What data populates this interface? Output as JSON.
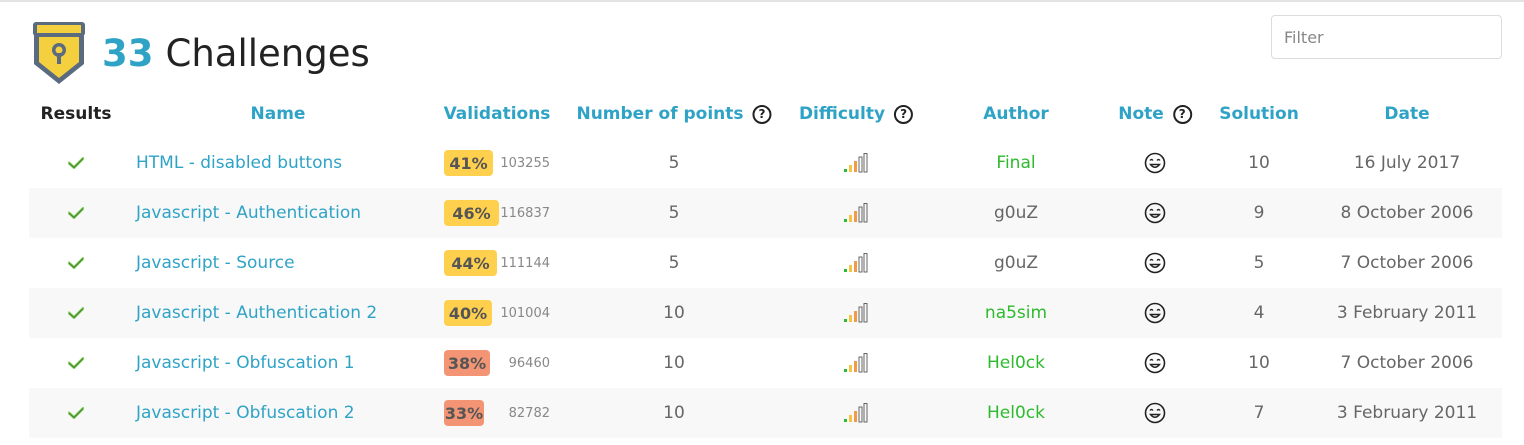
{
  "header": {
    "count": "33",
    "title": "Challenges"
  },
  "filter": {
    "placeholder": "Filter"
  },
  "columns": {
    "results": "Results",
    "name": "Name",
    "validations": "Validations",
    "points": "Number of points",
    "difficulty": "Difficulty",
    "author": "Author",
    "note": "Note",
    "solution": "Solution",
    "date": "Date",
    "help": "?"
  },
  "colors": {
    "accent": "#2fa3c6",
    "pct_yellow": "#ffd04d",
    "pct_orange": "#f39575",
    "author_green": "#2dbb2d",
    "check_green": "#8dd36a"
  },
  "rows": [
    {
      "result_icon": "check-icon",
      "name": "HTML - disabled buttons",
      "percent": "41%",
      "percent_fill": 0.41,
      "percent_color": "#ffd04d",
      "validations": "103255",
      "points": "5",
      "difficulty_icon": "difficulty-bars-icon",
      "author": "Final",
      "author_highlight": true,
      "note_icon": "smiley-face-icon",
      "solutions": "10",
      "date": "16 July 2017"
    },
    {
      "result_icon": "check-icon",
      "name": "Javascript - Authentication",
      "percent": "46%",
      "percent_fill": 0.46,
      "percent_color": "#ffd04d",
      "validations": "116837",
      "points": "5",
      "difficulty_icon": "difficulty-bars-icon",
      "author": "g0uZ",
      "author_highlight": false,
      "note_icon": "smiley-face-icon",
      "solutions": "9",
      "date": "8 October 2006"
    },
    {
      "result_icon": "check-icon",
      "name": "Javascript - Source",
      "percent": "44%",
      "percent_fill": 0.44,
      "percent_color": "#ffd04d",
      "validations": "111144",
      "points": "5",
      "difficulty_icon": "difficulty-bars-icon",
      "author": "g0uZ",
      "author_highlight": false,
      "note_icon": "smiley-face-icon",
      "solutions": "5",
      "date": "7 October 2006"
    },
    {
      "result_icon": "check-icon",
      "name": "Javascript - Authentication 2",
      "percent": "40%",
      "percent_fill": 0.4,
      "percent_color": "#ffd04d",
      "validations": "101004",
      "points": "10",
      "difficulty_icon": "difficulty-bars-icon",
      "author": "na5sim",
      "author_highlight": true,
      "note_icon": "smiley-face-icon",
      "solutions": "4",
      "date": "3 February 2011"
    },
    {
      "result_icon": "check-icon",
      "name": "Javascript - Obfuscation 1",
      "percent": "38%",
      "percent_fill": 0.38,
      "percent_color": "#f39575",
      "validations": "96460",
      "points": "10",
      "difficulty_icon": "difficulty-bars-icon",
      "author": "Hel0ck",
      "author_highlight": true,
      "note_icon": "smiley-face-icon",
      "solutions": "10",
      "date": "7 October 2006"
    },
    {
      "result_icon": "check-icon",
      "name": "Javascript - Obfuscation 2",
      "percent": "33%",
      "percent_fill": 0.33,
      "percent_color": "#f39575",
      "validations": "82782",
      "points": "10",
      "difficulty_icon": "difficulty-bars-icon",
      "author": "Hel0ck",
      "author_highlight": true,
      "note_icon": "smiley-face-icon",
      "solutions": "7",
      "date": "3 February 2011"
    }
  ]
}
